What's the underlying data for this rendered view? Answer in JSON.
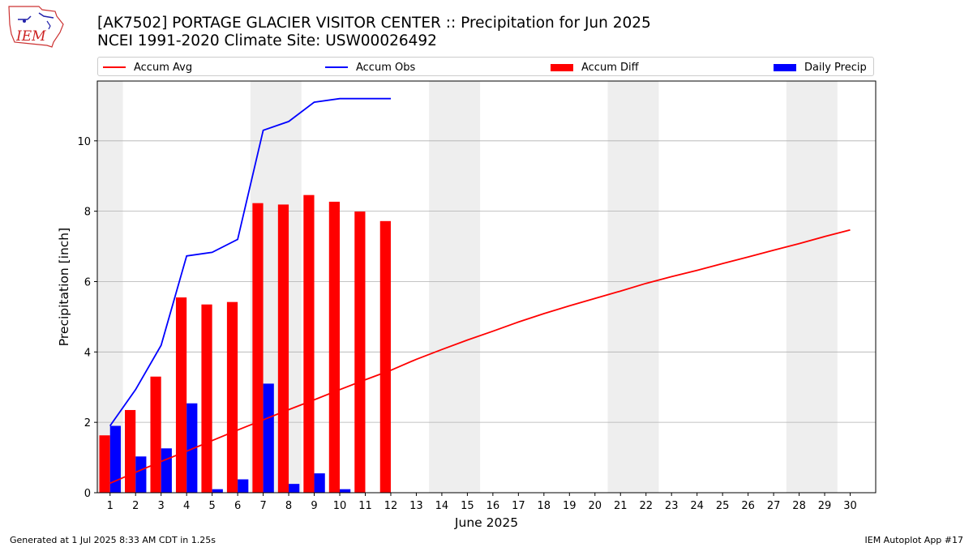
{
  "header": {
    "title_line1": "[AK7502] PORTAGE GLACIER VISITOR CENTER :: Precipitation for Jun 2025",
    "title_line2": "NCEI 1991-2020 Climate Site: USW00026492",
    "logo_text": "IEM"
  },
  "legend": {
    "accum_avg": "Accum Avg",
    "accum_obs": "Accum Obs",
    "accum_diff": "Accum Diff",
    "daily_precip": "Daily Precip"
  },
  "footer": {
    "generated": "Generated at 1 Jul 2025 8:33 AM CDT in 1.25s",
    "app": "IEM Autoplot App #17"
  },
  "colors": {
    "avg": "#ff0000",
    "obs": "#0000ff",
    "diff": "#ff0000",
    "daily": "#0000ff",
    "weekend": "#eeeeee",
    "grid": "#b0b0b0"
  },
  "chart_data": {
    "type": "bar",
    "xlabel": "June 2025",
    "ylabel": "Precipitation [inch]",
    "xlim": [
      0.5,
      31
    ],
    "ylim": [
      0,
      11.7
    ],
    "grid": "horizontal",
    "legend_position": "top",
    "x": [
      1,
      2,
      3,
      4,
      5,
      6,
      7,
      8,
      9,
      10,
      11,
      12,
      13,
      14,
      15,
      16,
      17,
      18,
      19,
      20,
      21,
      22,
      23,
      24,
      25,
      26,
      27,
      28,
      29,
      30
    ],
    "x_tick_labels": [
      "1",
      "2",
      "3",
      "4",
      "5",
      "6",
      "7",
      "8",
      "9",
      "10",
      "11",
      "12",
      "13",
      "14",
      "15",
      "16",
      "17",
      "18",
      "19",
      "20",
      "21",
      "22",
      "23",
      "24",
      "25",
      "26",
      "27",
      "28",
      "29",
      "30"
    ],
    "y_ticks": [
      0,
      2,
      4,
      6,
      8,
      10
    ],
    "y_tick_labels": [
      "0",
      "2",
      "4",
      "6",
      "8",
      "10"
    ],
    "weekend_spans": [
      [
        0.5,
        1.5
      ],
      [
        6.5,
        8.5
      ],
      [
        13.5,
        15.5
      ],
      [
        20.5,
        22.5
      ],
      [
        27.5,
        29.5
      ]
    ],
    "series": [
      {
        "name": "Accum Avg",
        "kind": "line",
        "x": [
          1,
          2,
          3,
          4,
          5,
          6,
          7,
          8,
          9,
          10,
          11,
          12,
          13,
          14,
          15,
          16,
          17,
          18,
          19,
          20,
          21,
          22,
          23,
          24,
          25,
          26,
          27,
          28,
          29,
          30
        ],
        "values": [
          0.27,
          0.58,
          0.89,
          1.18,
          1.48,
          1.78,
          2.07,
          2.36,
          2.64,
          2.93,
          3.21,
          3.48,
          3.79,
          4.07,
          4.34,
          4.59,
          4.85,
          5.09,
          5.31,
          5.52,
          5.73,
          5.95,
          6.14,
          6.32,
          6.51,
          6.7,
          6.89,
          7.08,
          7.28,
          7.47
        ]
      },
      {
        "name": "Accum Obs",
        "kind": "line",
        "x": [
          1,
          2,
          3,
          4,
          5,
          6,
          7,
          8,
          9,
          10,
          11,
          12
        ],
        "values": [
          1.9,
          2.93,
          4.19,
          6.73,
          6.83,
          7.2,
          10.3,
          10.55,
          11.1,
          11.2,
          11.2,
          11.2
        ]
      },
      {
        "name": "Accum Diff",
        "kind": "bar",
        "x": [
          1,
          2,
          3,
          4,
          5,
          6,
          7,
          8,
          9,
          10,
          11,
          12
        ],
        "values": [
          1.63,
          2.35,
          3.3,
          5.55,
          5.35,
          5.42,
          8.23,
          8.19,
          8.46,
          8.27,
          7.99,
          7.72
        ]
      },
      {
        "name": "Daily Precip",
        "kind": "bar",
        "x": [
          1,
          2,
          3,
          4,
          5,
          6,
          7,
          8,
          9,
          10,
          11,
          12
        ],
        "values": [
          1.9,
          1.03,
          1.26,
          2.54,
          0.1,
          0.38,
          3.1,
          0.25,
          0.55,
          0.1,
          0.0,
          0.0
        ]
      }
    ]
  }
}
